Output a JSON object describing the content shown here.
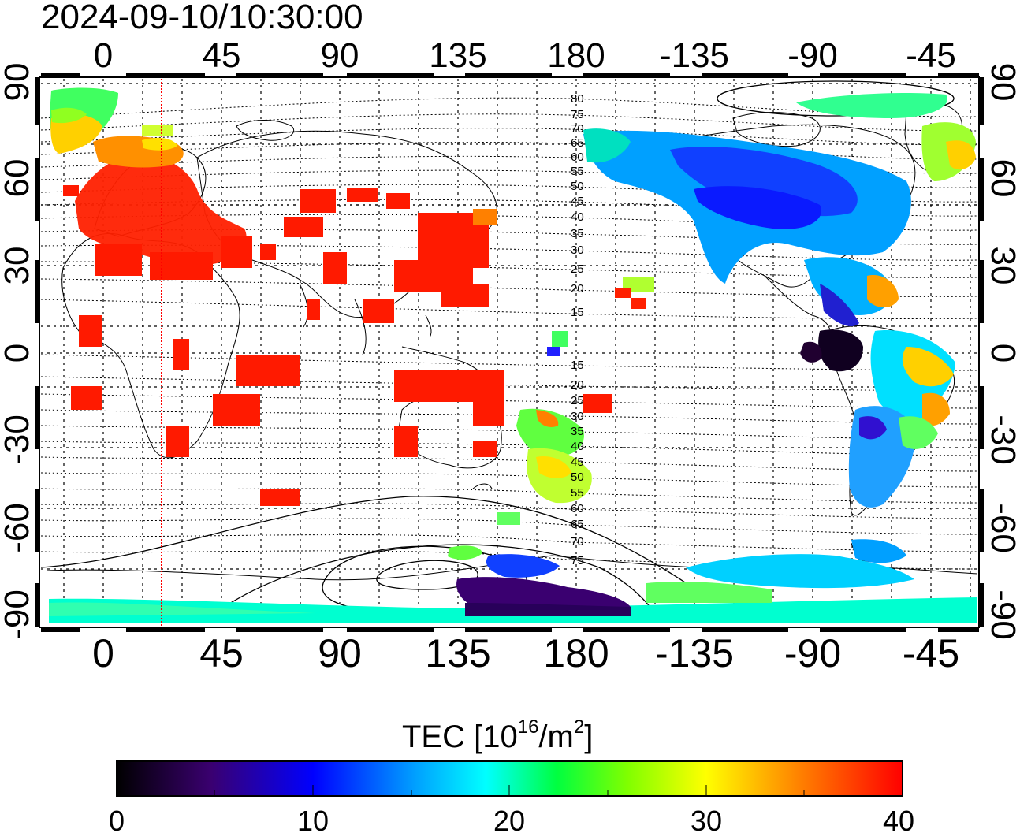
{
  "timestamp": "2024-09-10/10:30:00",
  "x_ticks_top": [
    "0",
    "45",
    "90",
    "135",
    "180",
    "-135",
    "-90",
    "-45"
  ],
  "x_ticks_bottom": [
    "0",
    "45",
    "90",
    "135",
    "180",
    "-135",
    "-90",
    "-45"
  ],
  "y_ticks_left": [
    "90",
    "60",
    "30",
    "0",
    "-30",
    "-60",
    "-90"
  ],
  "y_ticks_right": [
    "90",
    "60",
    "30",
    "0",
    "-30",
    "-60",
    "-90"
  ],
  "contour_labels": [
    "80",
    "75",
    "70",
    "65",
    "60",
    "55",
    "50",
    "45",
    "40",
    "35",
    "30",
    "25",
    "20",
    "15",
    "15",
    "20",
    "25",
    "30",
    "35",
    "40",
    "45",
    "50",
    "55",
    "60",
    "65",
    "70",
    "75"
  ],
  "colorbar": {
    "title_prefix": "TEC  [10",
    "title_exp": "16",
    "title_mid": "/m",
    "title_exp2": "2",
    "title_suffix": "]",
    "tick_labels": [
      "0",
      "10",
      "20",
      "30",
      "40"
    ],
    "min": 0,
    "max": 40
  },
  "colors": {
    "scale": [
      "#000000",
      "#3a0070",
      "#0000ff",
      "#00a0ff",
      "#00ffff",
      "#00ff40",
      "#80ff00",
      "#ffff00",
      "#ff8000",
      "#ff0000"
    ],
    "meridian_marker": "#ff0000"
  }
}
